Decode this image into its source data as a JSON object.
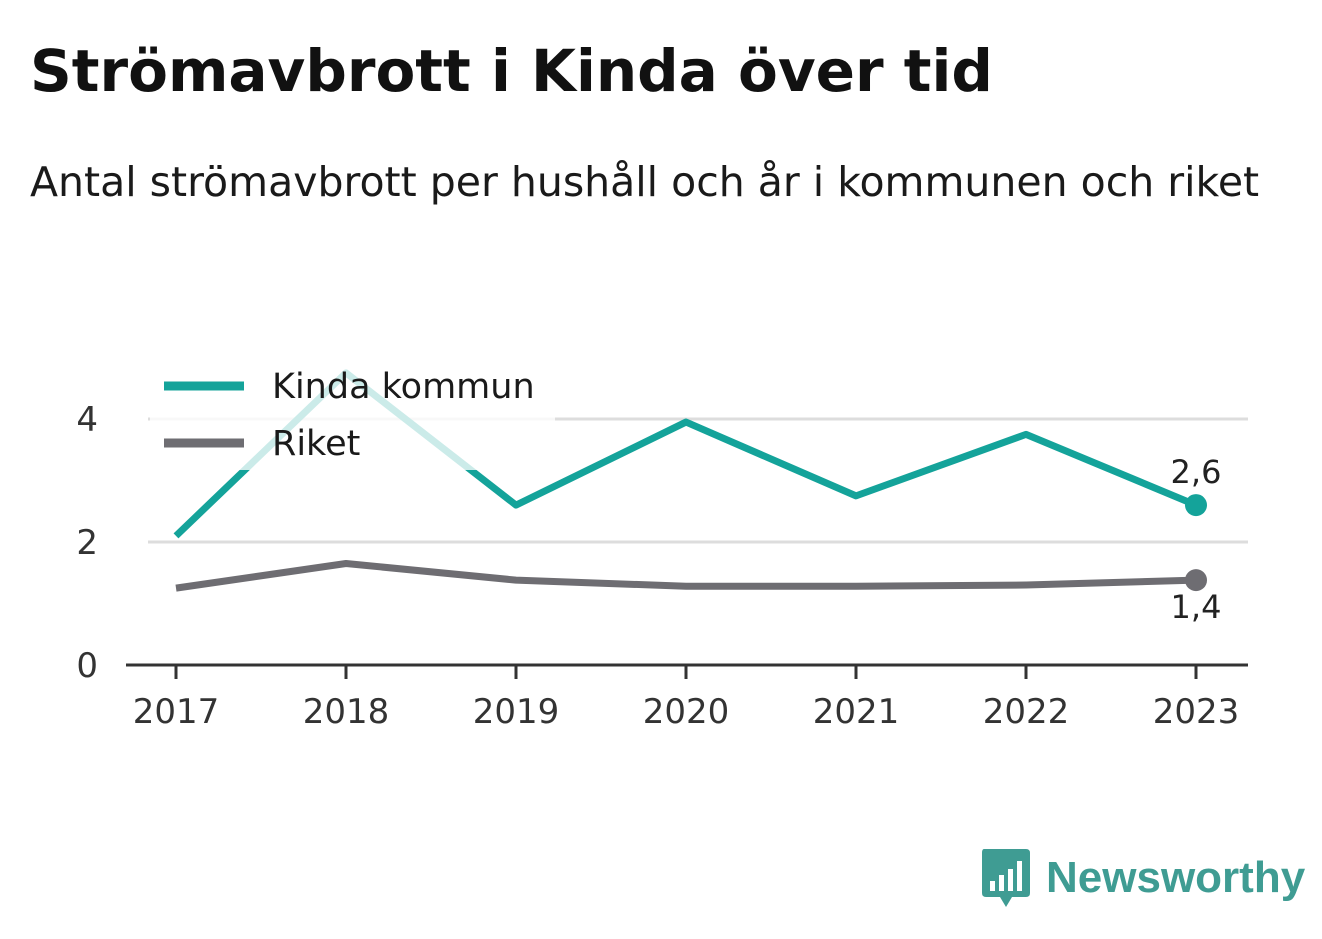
{
  "title": "Strömavbrott i Kinda över tid",
  "subtitle": "Antal strömavbrott per hushåll och år i kommunen och riket",
  "brand": {
    "name": "Newsworthy",
    "color": "#3f9c93"
  },
  "colors": {
    "kinda": "#14a39a",
    "riket": "#6e6d72",
    "grid": "#dddddd",
    "axis": "#333333"
  },
  "chart_data": {
    "type": "line",
    "categories": [
      "2017",
      "2018",
      "2019",
      "2020",
      "2021",
      "2022",
      "2023"
    ],
    "series": [
      {
        "name": "Kinda kommun",
        "values": [
          2.1,
          4.75,
          2.6,
          3.95,
          2.75,
          3.75,
          2.6
        ],
        "end_label": "2,6"
      },
      {
        "name": "Riket",
        "values": [
          1.25,
          1.65,
          1.38,
          1.28,
          1.28,
          1.3,
          1.38
        ],
        "end_label": "1,4"
      }
    ],
    "yticks": [
      "0",
      "2",
      "4"
    ],
    "ylim": [
      0,
      5
    ],
    "grid": true,
    "legend": "top-left"
  }
}
